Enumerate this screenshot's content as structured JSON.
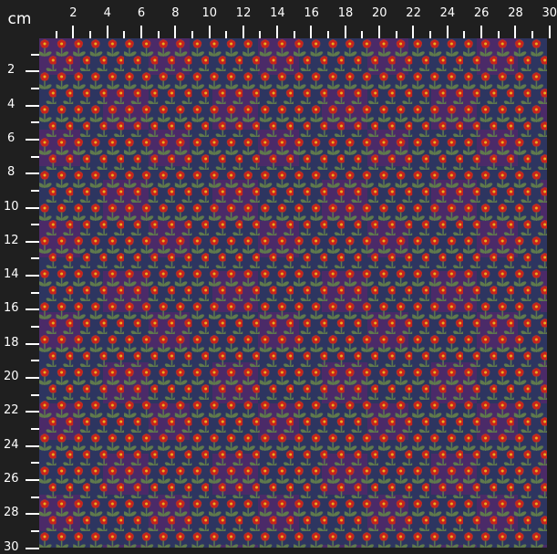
{
  "unit_label": "cm",
  "top_ruler_labels": [
    "2",
    "4",
    "6",
    "8",
    "10",
    "12",
    "14",
    "16",
    "18",
    "20",
    "22",
    "24",
    "26",
    "28",
    "30"
  ],
  "left_ruler_labels": [
    "2",
    "4",
    "6",
    "8",
    "10",
    "12",
    "14",
    "16",
    "18",
    "20",
    "22",
    "24",
    "26",
    "28",
    "30"
  ],
  "colors": {
    "background_navy": "#2d3560",
    "background_purple": "#4b2a68",
    "petal_red": "#c8231c",
    "flower_outline": "#8a4a3a",
    "center_yellow": "#e8b020",
    "leaf_green": "#5f7a4c",
    "ruler_bg": "#1f1f1f"
  },
  "fabric_pattern": "red flowers with green leaves on navy and purple ground"
}
